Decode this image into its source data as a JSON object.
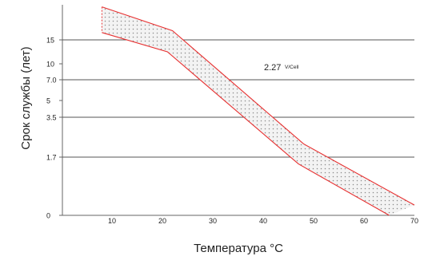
{
  "chart_data": {
    "type": "area",
    "xlabel": "Температура °C",
    "ylabel": "Срок службы (лет)",
    "annotation": {
      "value": "2.27",
      "unit": "V/Cell"
    },
    "x_ticks": [
      10,
      20,
      30,
      40,
      50,
      60,
      70
    ],
    "y_ticks": [
      {
        "value": 0,
        "label": "0"
      },
      {
        "value": 1.7,
        "label": "1.7"
      },
      {
        "value": 3.5,
        "label": "3.5"
      },
      {
        "value": 5,
        "label": "5"
      },
      {
        "value": 7.0,
        "label": "7.0"
      },
      {
        "value": 10,
        "label": "10"
      },
      {
        "value": 15,
        "label": "15"
      }
    ],
    "y_gridlines": [
      1.7,
      3.5,
      7.0,
      15
    ],
    "band": {
      "upper": [
        {
          "x": 8,
          "y": 24
        },
        {
          "x": 22,
          "y": 17.5
        },
        {
          "x": 48,
          "y": 2.3
        },
        {
          "x": 70,
          "y": 0.3
        }
      ],
      "lower": [
        {
          "x": 8,
          "y": 17
        },
        {
          "x": 21,
          "y": 12.5
        },
        {
          "x": 47,
          "y": 1.5
        },
        {
          "x": 65,
          "y": 0
        }
      ]
    },
    "colors": {
      "band_edge": "#e83030",
      "band_fill": "#b8b8b8",
      "grid": "#555555",
      "axis": "#666666",
      "text": "#222222"
    },
    "grid": true
  }
}
